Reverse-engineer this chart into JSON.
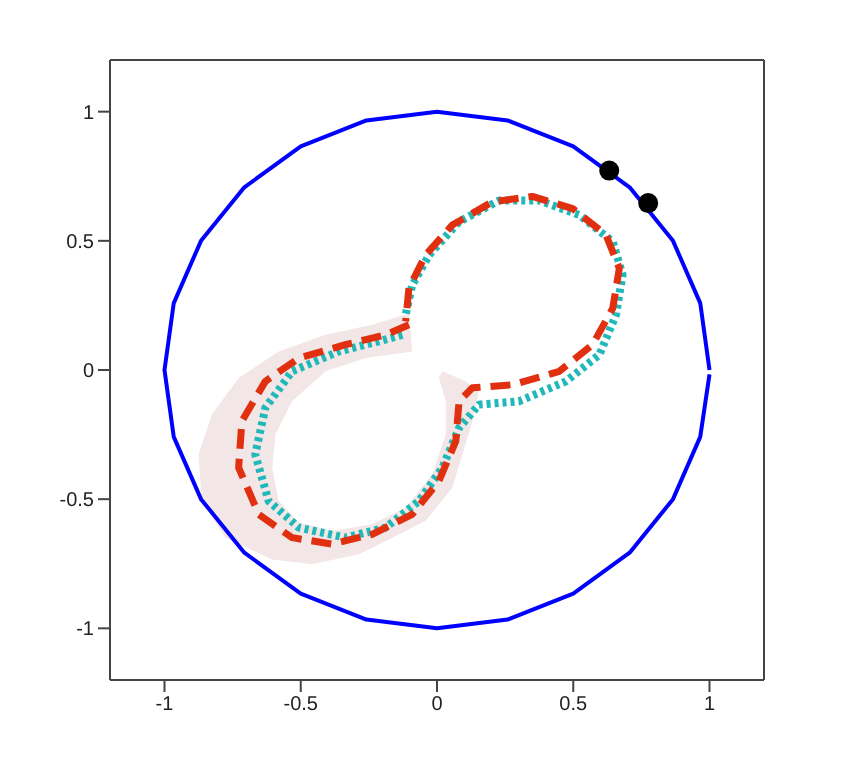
{
  "chart_data": {
    "type": "line",
    "xlim": [
      -1.2,
      1.2
    ],
    "ylim": [
      -1.2,
      1.2
    ],
    "xticks": [
      -1,
      -0.5,
      0,
      0.5,
      1
    ],
    "yticks": [
      -1,
      -0.5,
      0,
      0.5,
      1
    ],
    "grid": false,
    "legend": false,
    "series": [
      {
        "type": "area",
        "color": "#f2e6e6",
        "x": [
          -0.103,
          -0.238,
          -0.409,
          -0.581,
          -0.728,
          -0.826,
          -0.875,
          -0.863,
          -0.777,
          -0.605,
          -0.458,
          -0.287,
          -0.164,
          -0.042,
          0.056,
          0.093,
          0.13,
          0.154,
          0.105,
          0.02,
          0.007,
          0.032,
          0.032,
          -0.017,
          -0.115,
          -0.238,
          -0.385,
          -0.507,
          -0.581,
          -0.605,
          -0.593,
          -0.532,
          -0.409,
          -0.262,
          -0.091
        ],
        "values": [
          0.219,
          0.175,
          0.136,
          0.072,
          -0.031,
          -0.172,
          -0.327,
          -0.507,
          -0.649,
          -0.734,
          -0.752,
          -0.713,
          -0.649,
          -0.584,
          -0.456,
          -0.327,
          -0.198,
          -0.082,
          -0.044,
          -0.005,
          -0.031,
          -0.121,
          -0.25,
          -0.404,
          -0.533,
          -0.597,
          -0.623,
          -0.589,
          -0.507,
          -0.378,
          -0.25,
          -0.121,
          -0.005,
          0.046,
          0.072
        ]
      },
      {
        "color": "#0000ff",
        "line_style": "solid",
        "x": [
          1,
          0.966,
          0.866,
          0.707,
          0.5,
          0.259,
          0,
          -0.259,
          -0.5,
          -0.707,
          -0.866,
          -0.966,
          -1,
          -0.966,
          -0.866,
          -0.707,
          -0.5,
          -0.259,
          0,
          0.259,
          0.5,
          0.707,
          0.866,
          0.966,
          1
        ],
        "values": [
          0,
          0.259,
          0.5,
          0.707,
          0.866,
          0.966,
          1,
          0.966,
          0.866,
          0.707,
          0.5,
          0.259,
          0,
          -0.259,
          -0.5,
          -0.707,
          -0.866,
          -0.966,
          -1,
          -0.966,
          -0.866,
          -0.707,
          -0.5,
          -0.259,
          -0.017
        ]
      },
      {
        "color": "#20b8b8",
        "line_style": "dotted",
        "x": [
          -0.127,
          -0.213,
          -0.36,
          -0.532,
          -0.63,
          -0.667,
          -0.618,
          -0.507,
          -0.336,
          -0.189,
          -0.066,
          0.02,
          0.081,
          0.154,
          0.301,
          0.473,
          0.596,
          0.657,
          0.681,
          0.645,
          0.522,
          0.375,
          0.228,
          0.081,
          -0.029,
          -0.091,
          -0.115
        ],
        "values": [
          0.136,
          0.111,
          0.072,
          -0.005,
          -0.147,
          -0.327,
          -0.507,
          -0.61,
          -0.649,
          -0.61,
          -0.507,
          -0.378,
          -0.224,
          -0.134,
          -0.121,
          -0.044,
          0.059,
          0.214,
          0.368,
          0.497,
          0.6,
          0.656,
          0.656,
          0.574,
          0.445,
          0.329,
          0.214
        ]
      },
      {
        "color": "#e03010",
        "line_style": "dashed",
        "x": [
          -0.103,
          -0.189,
          -0.336,
          -0.507,
          -0.63,
          -0.716,
          -0.728,
          -0.654,
          -0.532,
          -0.385,
          -0.238,
          -0.091,
          0.007,
          0.069,
          0.081,
          0.13,
          0.277,
          0.449,
          0.571,
          0.645,
          0.669,
          0.62,
          0.498,
          0.35,
          0.203,
          0.056,
          -0.042,
          -0.103,
          -0.115
        ],
        "values": [
          0.175,
          0.136,
          0.098,
          0.046,
          -0.044,
          -0.198,
          -0.378,
          -0.559,
          -0.649,
          -0.674,
          -0.636,
          -0.559,
          -0.43,
          -0.275,
          -0.121,
          -0.069,
          -0.057,
          -0.005,
          0.098,
          0.239,
          0.394,
          0.523,
          0.625,
          0.672,
          0.651,
          0.561,
          0.445,
          0.317,
          0.188
        ]
      },
      {
        "type": "scatter",
        "color": "#000000",
        "marker": "circle",
        "x": [
          0.632,
          0.775
        ],
        "values": [
          0.772,
          0.646
        ]
      }
    ]
  }
}
